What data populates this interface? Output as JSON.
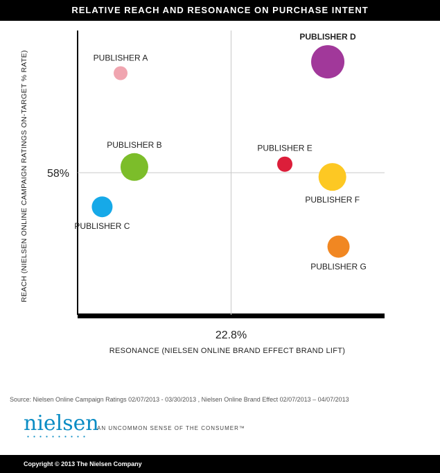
{
  "header": {
    "title": "RELATIVE REACH AND RESONANCE ON PURCHASE INTENT"
  },
  "chart_data": {
    "type": "scatter",
    "title": "RELATIVE REACH AND RESONANCE ON PURCHASE INTENT",
    "xlabel": "RESONANCE (NIELSEN ONLINE BRAND EFFECT BRAND LIFT)",
    "ylabel": "REACH (NIELSEN ONLINE CAMPAIGN RATINGS ON-TARGET % RATE)",
    "x_reference": {
      "value": 22.8,
      "label": "22.8%"
    },
    "y_reference": {
      "value": 58,
      "label": "58%"
    },
    "xlim": [
      0,
      100
    ],
    "ylim": [
      0,
      100
    ],
    "grid": false,
    "legend": "none",
    "points": [
      {
        "name": "PUBLISHER A",
        "x": 14,
        "y": 85,
        "size": 10,
        "color": "#f0a5b0",
        "label_pos": "above"
      },
      {
        "name": "PUBLISHER B",
        "x": 18.5,
        "y": 52,
        "size": 20,
        "color": "#7cbd2a",
        "label_pos": "above"
      },
      {
        "name": "PUBLISHER C",
        "x": 8,
        "y": 38,
        "size": 15,
        "color": "#16a9e8",
        "label_pos": "below"
      },
      {
        "name": "PUBLISHER D",
        "x": 81.5,
        "y": 89,
        "size": 24,
        "color": "#a1389a",
        "label_pos": "above"
      },
      {
        "name": "PUBLISHER E",
        "x": 67.5,
        "y": 53,
        "size": 11,
        "color": "#dc1e3a",
        "label_pos": "above"
      },
      {
        "name": "PUBLISHER F",
        "x": 83,
        "y": 48.5,
        "size": 20,
        "color": "#fdc823",
        "label_pos": "below"
      },
      {
        "name": "PUBLISHER G",
        "x": 85,
        "y": 24,
        "size": 16,
        "color": "#f18722",
        "label_pos": "below"
      }
    ]
  },
  "source": "Source: Nielsen Online Campaign Ratings  02/07/2013 - 03/30/2013 , Nielsen Online Brand Effect 02/07/2013 – 04/07/2013",
  "brand": {
    "logo_text": "nielsen",
    "tagline": "AN UNCOMMON SENSE OF THE CONSUMER™"
  },
  "footer": {
    "copyright": "Copyright © 2013 The Nielsen Company"
  }
}
